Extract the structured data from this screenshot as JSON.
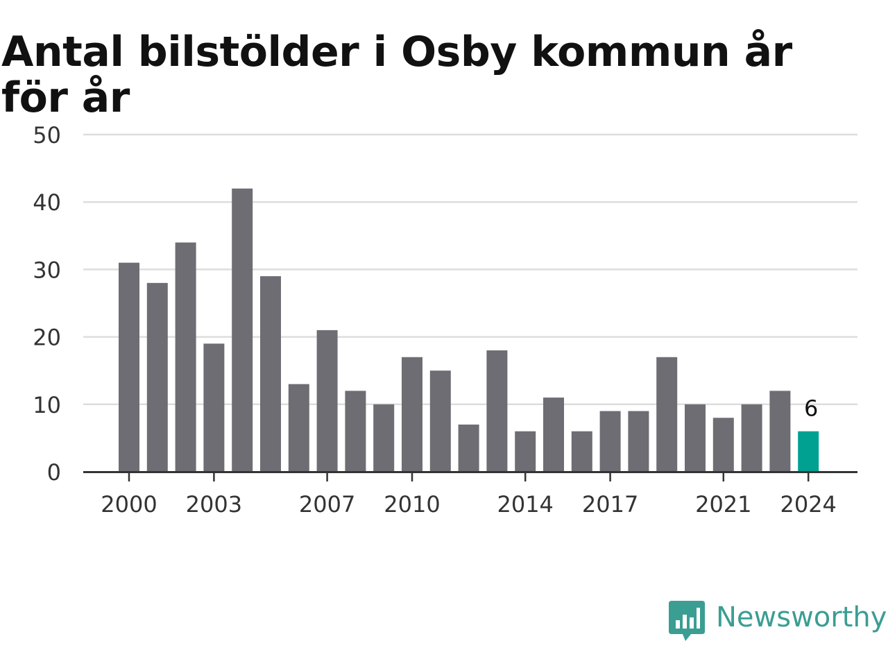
{
  "chart_data": {
    "type": "bar",
    "title": "Antal bilstölder i Osby kommun år för år",
    "xlabel": "",
    "ylabel": "",
    "ylim": [
      0,
      50
    ],
    "yticks": [
      0,
      10,
      20,
      30,
      40,
      50
    ],
    "xtick_labels": [
      "2000",
      "2003",
      "2007",
      "2010",
      "2014",
      "2017",
      "2021",
      "2024"
    ],
    "categories": [
      "2000",
      "2001",
      "2002",
      "2003",
      "2004",
      "2005",
      "2006",
      "2007",
      "2008",
      "2009",
      "2010",
      "2011",
      "2012",
      "2013",
      "2014",
      "2015",
      "2016",
      "2017",
      "2018",
      "2019",
      "2020",
      "2021",
      "2022",
      "2023",
      "2024"
    ],
    "values": [
      31,
      28,
      34,
      19,
      42,
      29,
      13,
      21,
      12,
      10,
      17,
      15,
      7,
      18,
      6,
      11,
      6,
      9,
      9,
      17,
      10,
      8,
      10,
      12,
      6
    ],
    "highlight": {
      "category": "2024",
      "label": "6"
    },
    "grid": true,
    "colors": {
      "bar": "#6e6d73",
      "highlight": "#00a191",
      "grid": "#dddddd",
      "axis": "#333333"
    }
  },
  "brand": {
    "name": "Newsworthy",
    "icon": "chart-speech-bubble-icon",
    "color": "#3a9e93"
  }
}
